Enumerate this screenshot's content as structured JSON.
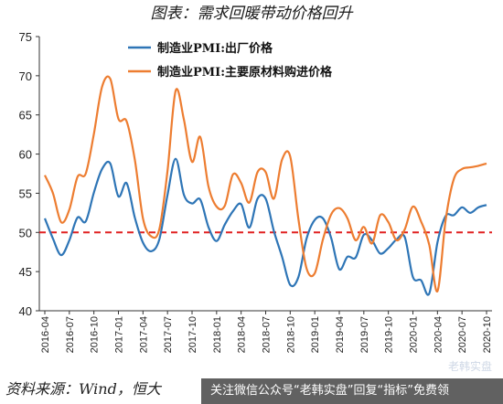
{
  "chart_data": {
    "type": "line",
    "title": "图表：需求回暖带动价格回升",
    "xlabel": "",
    "ylabel": "",
    "ylim": [
      40,
      75
    ],
    "yticks": [
      40,
      45,
      50,
      55,
      60,
      65,
      70,
      75
    ],
    "xtick_labels": [
      "2016-04",
      "2016-07",
      "2016-10",
      "2017-01",
      "2017-04",
      "2017-07",
      "2017-10",
      "2018-01",
      "2018-04",
      "2018-07",
      "2018-10",
      "2019-01",
      "2019-04",
      "2019-07",
      "2019-10",
      "2020-01",
      "2020-04",
      "2020-07",
      "2020-10"
    ],
    "x": [
      "2016-04",
      "2016-05",
      "2016-06",
      "2016-07",
      "2016-08",
      "2016-09",
      "2016-10",
      "2016-11",
      "2016-12",
      "2017-01",
      "2017-02",
      "2017-03",
      "2017-04",
      "2017-05",
      "2017-06",
      "2017-07",
      "2017-08",
      "2017-09",
      "2017-10",
      "2017-11",
      "2017-12",
      "2018-01",
      "2018-02",
      "2018-03",
      "2018-04",
      "2018-05",
      "2018-06",
      "2018-07",
      "2018-08",
      "2018-09",
      "2018-10",
      "2018-11",
      "2018-12",
      "2019-01",
      "2019-02",
      "2019-03",
      "2019-04",
      "2019-05",
      "2019-06",
      "2019-07",
      "2019-08",
      "2019-09",
      "2019-10",
      "2019-11",
      "2019-12",
      "2020-01",
      "2020-02",
      "2020-03",
      "2020-04",
      "2020-05",
      "2020-06",
      "2020-07",
      "2020-08",
      "2020-09",
      "2020-10"
    ],
    "series": [
      {
        "name": "制造业PMI:出厂价格",
        "color": "#2e75b6",
        "values": [
          51.8,
          49.2,
          47.1,
          49.0,
          51.9,
          51.4,
          55.1,
          58.1,
          58.8,
          54.6,
          56.3,
          51.9,
          48.7,
          47.6,
          49.1,
          54.8,
          59.4,
          54.8,
          53.7,
          54.2,
          50.7,
          48.9,
          51.0,
          52.7,
          53.6,
          50.6,
          54.3,
          54.3,
          50.2,
          46.9,
          43.3,
          44.3,
          49.2,
          51.6,
          51.8,
          49.3,
          45.3,
          46.9,
          46.8,
          49.7,
          49.0,
          47.3,
          48.0,
          49.1,
          49.4,
          44.3,
          43.9,
          42.2,
          48.7,
          52.1,
          52.2,
          53.2,
          52.5,
          53.2,
          53.5
        ]
      },
      {
        "name": "制造业PMI:主要原材料购进价格",
        "color": "#ed7d31",
        "values": [
          57.3,
          55.0,
          51.3,
          52.9,
          57.1,
          57.5,
          62.6,
          68.6,
          69.6,
          64.5,
          64.2,
          59.3,
          51.8,
          49.5,
          50.4,
          57.9,
          68.1,
          64.4,
          59.0,
          62.2,
          55.9,
          53.3,
          53.4,
          57.4,
          56.3,
          53.8,
          57.7,
          57.7,
          54.3,
          59.3,
          59.7,
          51.7,
          45.4,
          44.8,
          49.1,
          52.3,
          53.1,
          51.8,
          49.0,
          50.7,
          48.6,
          52.2,
          51.3,
          49.0,
          50.4,
          53.3,
          51.4,
          48.4,
          42.5,
          51.6,
          56.8,
          58.1,
          58.3,
          58.5,
          58.8
        ]
      }
    ],
    "reference_line": {
      "value": 50,
      "color": "#e02020",
      "style": "dashed"
    },
    "legend": "top-left",
    "grid": false
  },
  "footer": {
    "source_text": "资料来源：Wind，恒大",
    "watermark_text": "关注微信公众号“老韩实盘”回复“指标”免费领",
    "watermark_logo": "老韩实盘"
  }
}
